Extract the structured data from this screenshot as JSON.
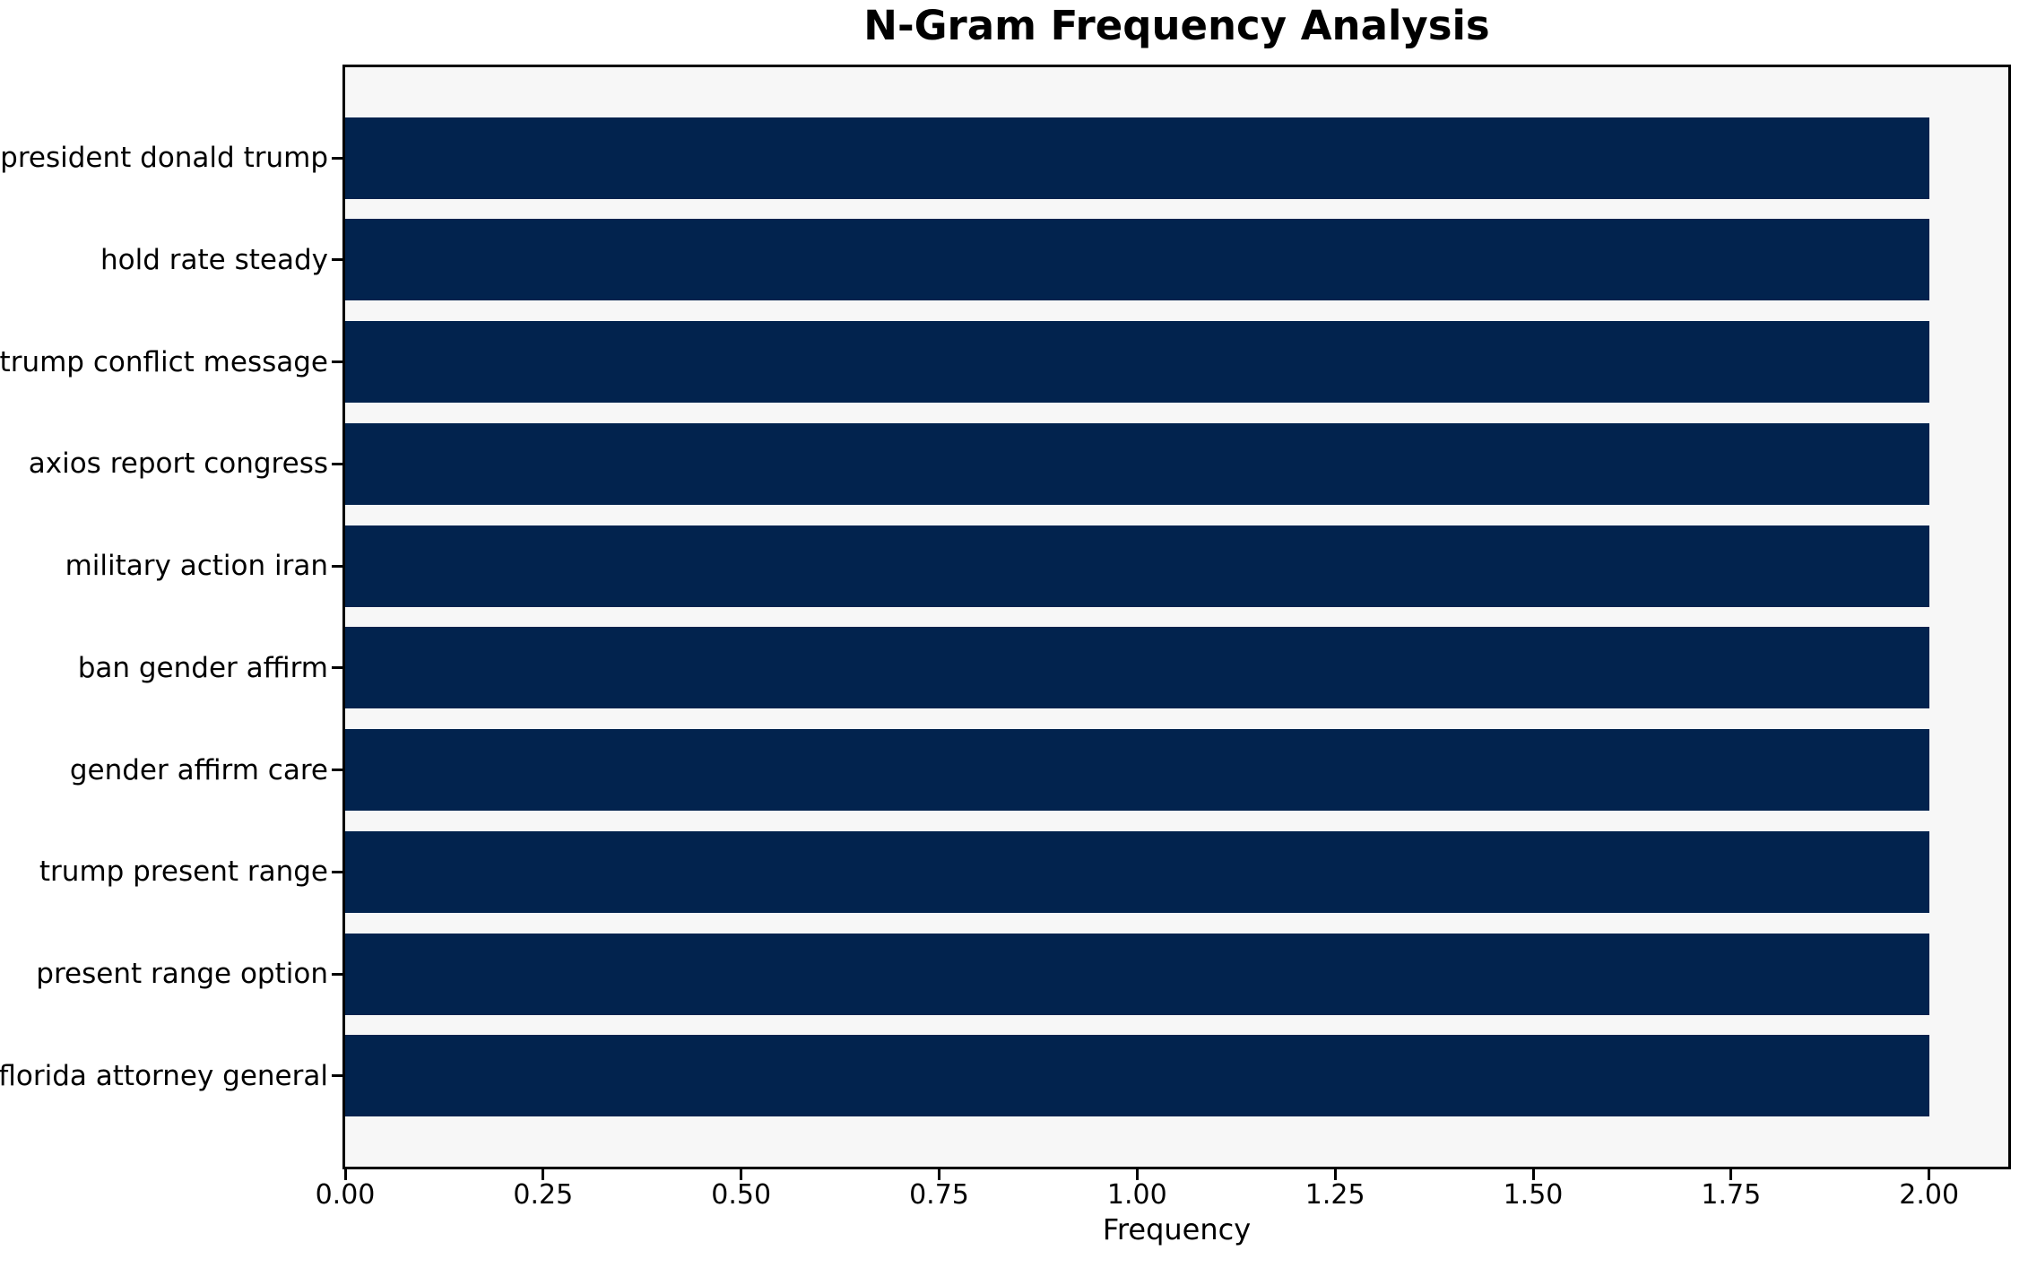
{
  "chart_data": {
    "type": "bar",
    "orientation": "horizontal",
    "title": "N-Gram Frequency Analysis",
    "xlabel": "Frequency",
    "ylabel": "",
    "categories": [
      "president donald trump",
      "hold rate steady",
      "trump conflict message",
      "axios report congress",
      "military action iran",
      "ban gender affirm",
      "gender affirm care",
      "trump present range",
      "present range option",
      "florida attorney general"
    ],
    "values": [
      2,
      2,
      2,
      2,
      2,
      2,
      2,
      2,
      2,
      2
    ],
    "xticks": [
      0,
      0.25,
      0.5,
      0.75,
      1.0,
      1.25,
      1.5,
      1.75,
      2.0
    ],
    "xtick_labels": [
      "0.00",
      "0.25",
      "0.50",
      "0.75",
      "1.00",
      "1.25",
      "1.50",
      "1.75",
      "2.00"
    ],
    "xlim": [
      0,
      2.1
    ],
    "ylim": [
      -0.89,
      9.89
    ],
    "bar_height": 0.8,
    "grid": false,
    "legend": null,
    "colors": {
      "bar": "#02234e",
      "plot_background": "#f7f7f7",
      "figure_background": "#ffffff",
      "spine": "#000000",
      "text": "#000000"
    }
  }
}
